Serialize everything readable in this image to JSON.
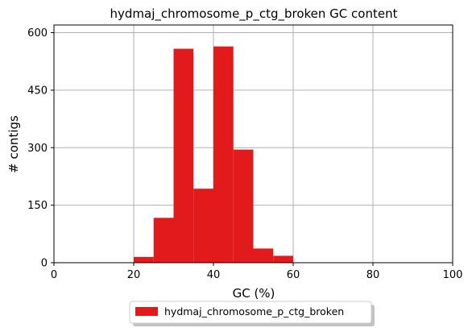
{
  "chart_data": {
    "type": "bar",
    "title": "hydmaj_chromosome_p_ctg_broken GC content",
    "xlabel": "GC (%)",
    "ylabel": "# contigs",
    "xlim": [
      0,
      100
    ],
    "ylim": [
      0,
      620
    ],
    "xticks": [
      0,
      20,
      40,
      60,
      80,
      100
    ],
    "yticks": [
      0,
      150,
      300,
      450,
      600
    ],
    "grid": true,
    "legend_position": "bottom-center",
    "series": [
      {
        "name": "hydmaj_chromosome_p_ctg_broken",
        "color": "#e31a1c",
        "bins": [
          {
            "x0": 20,
            "x1": 25,
            "count": 15
          },
          {
            "x0": 25,
            "x1": 30,
            "count": 117
          },
          {
            "x0": 30,
            "x1": 35,
            "count": 558
          },
          {
            "x0": 35,
            "x1": 40,
            "count": 193
          },
          {
            "x0": 40,
            "x1": 45,
            "count": 564
          },
          {
            "x0": 45,
            "x1": 50,
            "count": 295
          },
          {
            "x0": 50,
            "x1": 55,
            "count": 37
          },
          {
            "x0": 55,
            "x1": 60,
            "count": 18
          }
        ]
      }
    ]
  }
}
